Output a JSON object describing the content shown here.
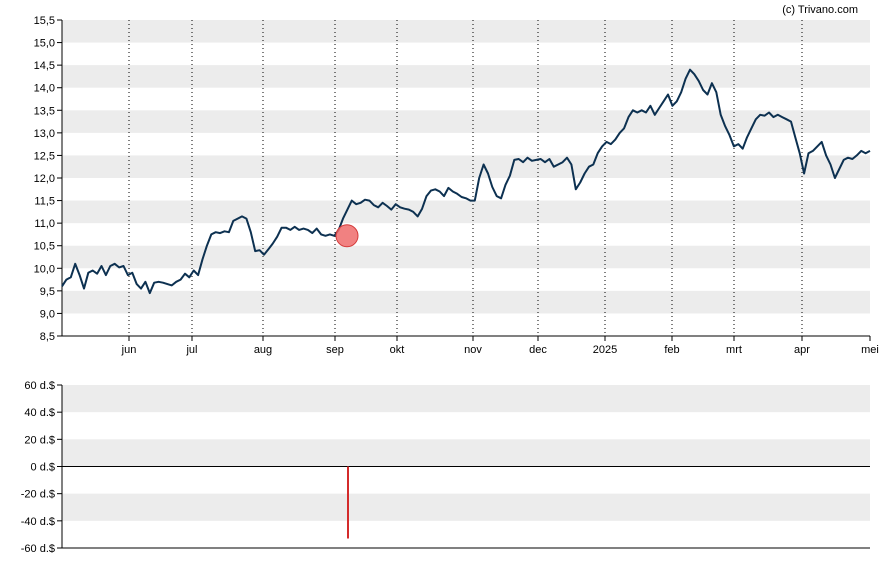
{
  "copyright": "(c) Trivano.com",
  "colors": {
    "price_line": "#0d3151",
    "band": "#ececec",
    "marker_fill": "#ef6b6b",
    "marker_stroke": "#d43a3a",
    "volume_bar": "#d42b2b"
  },
  "chart_data": [
    {
      "type": "line",
      "title": "",
      "xlabel": "",
      "ylabel": "",
      "x_labels": [
        "jun",
        "jul",
        "aug",
        "sep",
        "okt",
        "nov",
        "dec",
        "2025",
        "feb",
        "mrt",
        "apr",
        "mei"
      ],
      "y_ticks": [
        "8,5",
        "9,0",
        "9,5",
        "10,0",
        "10,5",
        "11,0",
        "11,5",
        "12,0",
        "12,5",
        "13,0",
        "13,5",
        "14,0",
        "14,5",
        "15,0",
        "15,5"
      ],
      "ylim": [
        8.5,
        15.5
      ],
      "grid": "horizontal bands, dotted vertical month lines",
      "series": [
        {
          "values": [
            9.6,
            9.75,
            9.8,
            10.1,
            9.85,
            9.55,
            9.9,
            9.95,
            9.88,
            10.05,
            9.85,
            10.05,
            10.1,
            10.02,
            10.05,
            9.85,
            9.9,
            9.65,
            9.55,
            9.7,
            9.45,
            9.68,
            9.7,
            9.68,
            9.65,
            9.62,
            9.7,
            9.75,
            9.88,
            9.8,
            9.95,
            9.85,
            10.2,
            10.5,
            10.75,
            10.8,
            10.78,
            10.82,
            10.8,
            11.05,
            11.1,
            11.15,
            11.1,
            10.8,
            10.38,
            10.4,
            10.3,
            10.42,
            10.55,
            10.7,
            10.9,
            10.9,
            10.85,
            10.92,
            10.85,
            10.88,
            10.85,
            10.78,
            10.88,
            10.75,
            10.72,
            10.75,
            10.72,
            10.85,
            11.1,
            11.3,
            11.5,
            11.42,
            11.45,
            11.52,
            11.5,
            11.4,
            11.35,
            11.45,
            11.38,
            11.3,
            11.42,
            11.35,
            11.32,
            11.3,
            11.25,
            11.15,
            11.32,
            11.6,
            11.72,
            11.75,
            11.7,
            11.6,
            11.78,
            11.7,
            11.65,
            11.58,
            11.55,
            11.5,
            11.5,
            12.0,
            12.3,
            12.1,
            11.8,
            11.6,
            11.55,
            11.85,
            12.05,
            12.4,
            12.42,
            12.35,
            12.45,
            12.38,
            12.4,
            12.42,
            12.35,
            12.42,
            12.25,
            12.3,
            12.35,
            12.45,
            12.3,
            11.75,
            11.9,
            12.1,
            12.25,
            12.3,
            12.55,
            12.7,
            12.8,
            12.75,
            12.85,
            13.0,
            13.1,
            13.35,
            13.5,
            13.45,
            13.5,
            13.45,
            13.6,
            13.4,
            13.55,
            13.7,
            13.85,
            13.6,
            13.7,
            13.9,
            14.2,
            14.4,
            14.3,
            14.15,
            13.95,
            13.85,
            14.1,
            13.9,
            13.4,
            13.15,
            12.95,
            12.7,
            12.75,
            12.65,
            12.9,
            13.1,
            13.3,
            13.4,
            13.38,
            13.45,
            13.35,
            13.4,
            13.35,
            13.3,
            13.25,
            12.9,
            12.55,
            12.1,
            12.55,
            12.6,
            12.7,
            12.8,
            12.5,
            12.3,
            12.0,
            12.2,
            12.4,
            12.45,
            12.42,
            12.5,
            12.6,
            12.55,
            12.6
          ]
        }
      ],
      "marker": {
        "x_position_month": "sep",
        "value": 10.72
      }
    },
    {
      "type": "bar",
      "title": "",
      "xlabel": "",
      "ylabel": "",
      "y_ticks": [
        "-60 d.$",
        "-40 d.$",
        "-20 d.$",
        "0 d.$",
        "20 d.$",
        "40 d.$",
        "60 d.$"
      ],
      "ylim": [
        -60,
        60
      ],
      "series": [
        {
          "values": [
            -53
          ],
          "at_price_index": 60
        }
      ]
    }
  ]
}
